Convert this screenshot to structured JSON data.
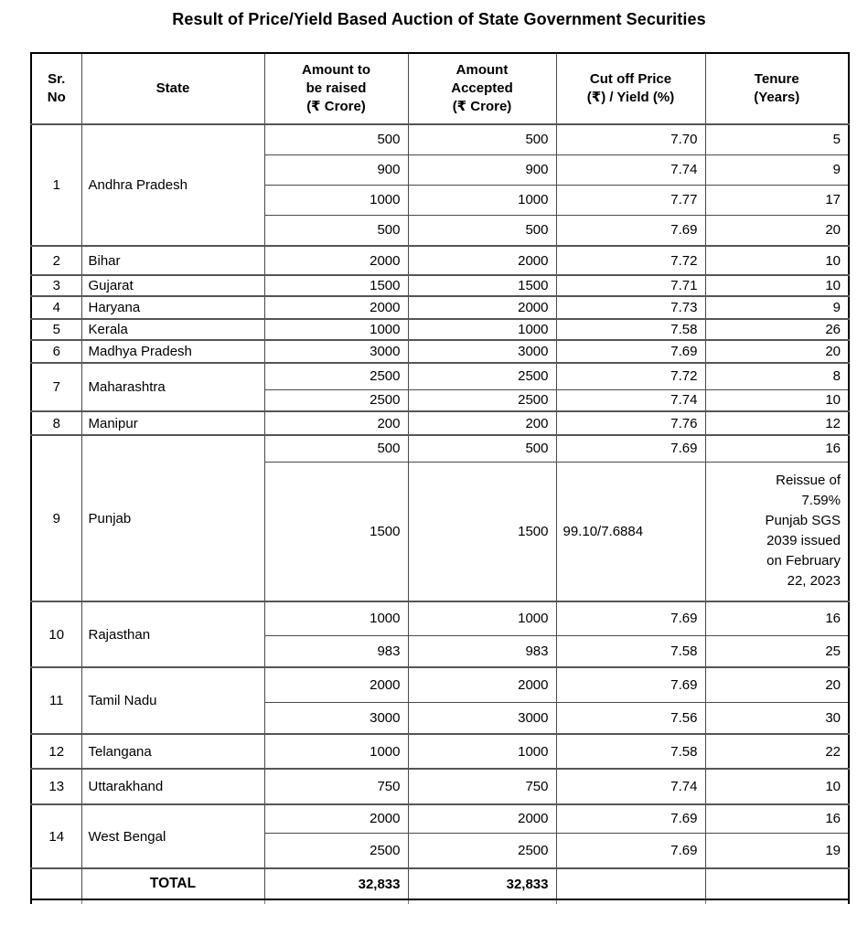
{
  "page_title": "Result of Price/Yield Based Auction of State Government Securities",
  "table": {
    "headers": [
      {
        "id": "sr",
        "label": "Sr.\nNo"
      },
      {
        "id": "state",
        "label": "State"
      },
      {
        "id": "raised",
        "label": "Amount to\nbe raised\n(₹ Crore)"
      },
      {
        "id": "accepted",
        "label": "Amount\nAccepted\n(₹ Crore)"
      },
      {
        "id": "cutoff",
        "label": "Cut off Price\n(₹) / Yield (%)"
      },
      {
        "id": "tenure",
        "label": "Tenure\n(Years)"
      }
    ],
    "groups": [
      {
        "sr": "1",
        "state": "Andhra Pradesh",
        "rows": [
          {
            "raised": "500",
            "accepted": "500",
            "cutoff": "7.70",
            "tenure": "5"
          },
          {
            "raised": "900",
            "accepted": "900",
            "cutoff": "7.74",
            "tenure": "9"
          },
          {
            "raised": "1000",
            "accepted": "1000",
            "cutoff": "7.77",
            "tenure": "17"
          },
          {
            "raised": "500",
            "accepted": "500",
            "cutoff": "7.69",
            "tenure": "20"
          }
        ]
      },
      {
        "sr": "2",
        "state": "Bihar",
        "rows": [
          {
            "raised": "2000",
            "accepted": "2000",
            "cutoff": "7.72",
            "tenure": "10"
          }
        ]
      },
      {
        "sr": "3",
        "state": "Gujarat",
        "rows": [
          {
            "raised": "1500",
            "accepted": "1500",
            "cutoff": "7.71",
            "tenure": "10"
          }
        ]
      },
      {
        "sr": "4",
        "state": "Haryana",
        "rows": [
          {
            "raised": "2000",
            "accepted": "2000",
            "cutoff": "7.73",
            "tenure": "9"
          }
        ]
      },
      {
        "sr": "5",
        "state": "Kerala",
        "rows": [
          {
            "raised": "1000",
            "accepted": "1000",
            "cutoff": "7.58",
            "tenure": "26"
          }
        ]
      },
      {
        "sr": "6",
        "state": "Madhya Pradesh",
        "rows": [
          {
            "raised": "3000",
            "accepted": "3000",
            "cutoff": "7.69",
            "tenure": "20"
          }
        ]
      },
      {
        "sr": "7",
        "state": "Maharashtra",
        "rows": [
          {
            "raised": "2500",
            "accepted": "2500",
            "cutoff": "7.72",
            "tenure": "8"
          },
          {
            "raised": "2500",
            "accepted": "2500",
            "cutoff": "7.74",
            "tenure": "10"
          }
        ]
      },
      {
        "sr": "8",
        "state": "Manipur",
        "rows": [
          {
            "raised": "200",
            "accepted": "200",
            "cutoff": "7.76",
            "tenure": "12"
          }
        ]
      },
      {
        "sr": "9",
        "state": "Punjab",
        "rows": [
          {
            "raised": "500",
            "accepted": "500",
            "cutoff": "7.69",
            "tenure": "16"
          },
          {
            "raised": "1500",
            "accepted": "1500",
            "cutoff": "99.10/7.6884",
            "tenure": "Reissue of\n7.59%\nPunjab SGS\n2039 issued\non February\n22, 2023"
          }
        ]
      },
      {
        "sr": "10",
        "state": "Rajasthan",
        "rows": [
          {
            "raised": "1000",
            "accepted": "1000",
            "cutoff": "7.69",
            "tenure": "16"
          },
          {
            "raised": "983",
            "accepted": "983",
            "cutoff": "7.58",
            "tenure": "25"
          }
        ]
      },
      {
        "sr": "11",
        "state": "Tamil Nadu",
        "rows": [
          {
            "raised": "2000",
            "accepted": "2000",
            "cutoff": "7.69",
            "tenure": "20"
          },
          {
            "raised": "3000",
            "accepted": "3000",
            "cutoff": "7.56",
            "tenure": "30"
          }
        ]
      },
      {
        "sr": "12",
        "state": "Telangana",
        "rows": [
          {
            "raised": "1000",
            "accepted": "1000",
            "cutoff": "7.58",
            "tenure": "22"
          }
        ]
      },
      {
        "sr": "13",
        "state": "Uttarakhand",
        "rows": [
          {
            "raised": "750",
            "accepted": "750",
            "cutoff": "7.74",
            "tenure": "10"
          }
        ]
      },
      {
        "sr": "14",
        "state": "West Bengal",
        "rows": [
          {
            "raised": "2000",
            "accepted": "2000",
            "cutoff": "7.69",
            "tenure": "16"
          },
          {
            "raised": "2500",
            "accepted": "2500",
            "cutoff": "7.69",
            "tenure": "19"
          }
        ]
      }
    ],
    "total": {
      "label": "TOTAL",
      "raised": "32,833",
      "accepted": "32,833",
      "cutoff": "",
      "tenure": ""
    }
  }
}
